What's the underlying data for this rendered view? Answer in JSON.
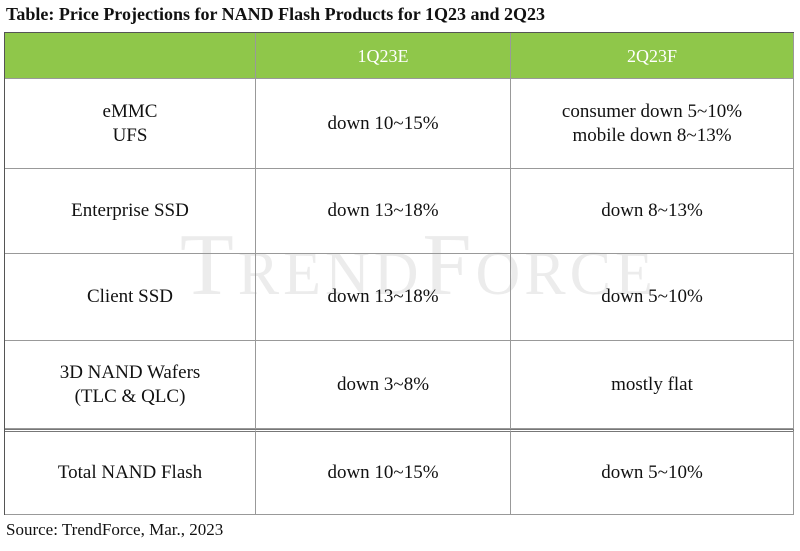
{
  "title": "Table: Price Projections for NAND Flash Products for 1Q23 and 2Q23",
  "watermark": "TrendForce",
  "table": {
    "header": [
      "1Q23E",
      "2Q23F"
    ],
    "rows": [
      {
        "label": [
          "eMMC",
          "UFS"
        ],
        "q1": [
          "down 10~15%"
        ],
        "q2": [
          "consumer down 5~10%",
          "mobile down 8~13%"
        ]
      },
      {
        "label": [
          "Enterprise SSD"
        ],
        "q1": [
          "down 13~18%"
        ],
        "q2": [
          "down 8~13%"
        ]
      },
      {
        "label": [
          "Client SSD"
        ],
        "q1": [
          "down 13~18%"
        ],
        "q2": [
          "down 5~10%"
        ]
      },
      {
        "label": [
          "3D NAND Wafers",
          "(TLC & QLC)"
        ],
        "q1": [
          "down 3~8%"
        ],
        "q2": [
          "mostly flat"
        ]
      },
      {
        "label": [
          "Total NAND Flash"
        ],
        "q1": [
          "down 10~15%"
        ],
        "q2": [
          "down 5~10%"
        ]
      }
    ]
  },
  "source": "Source: TrendForce, Mar., 2023"
}
